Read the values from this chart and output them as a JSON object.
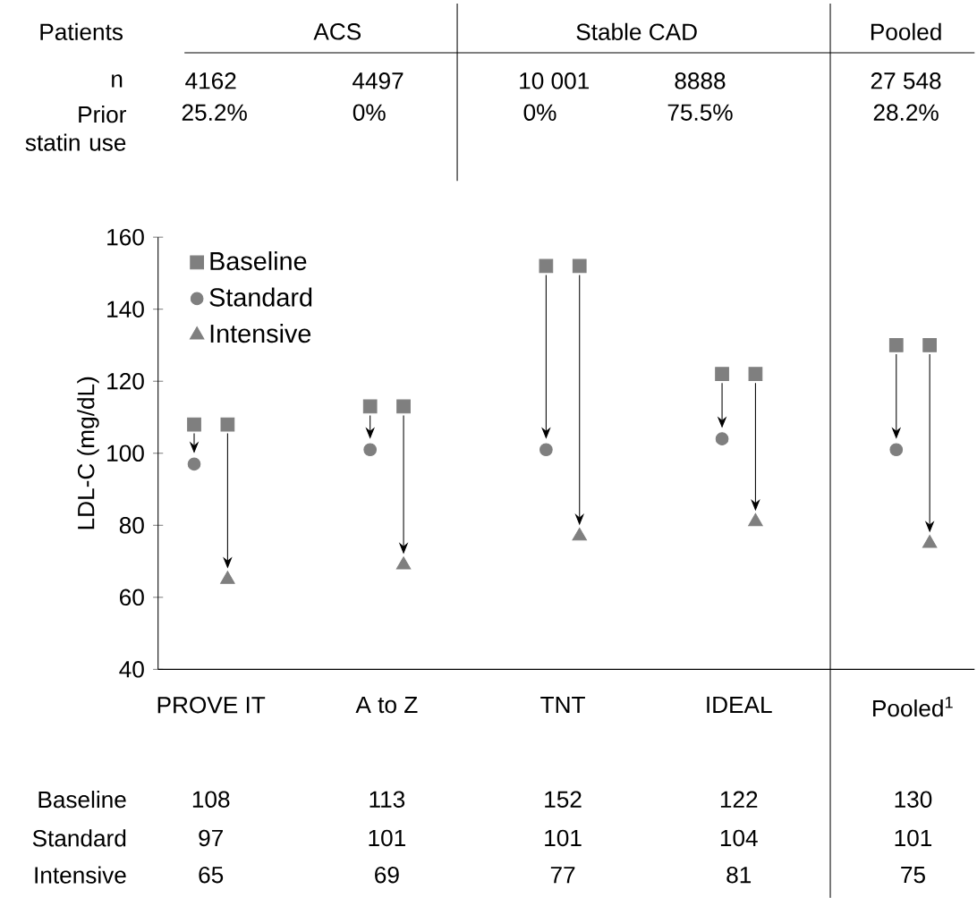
{
  "chart_data": {
    "type": "scatter",
    "ylabel": "LDL-C (mg/dL)",
    "categories": [
      "PROVE IT",
      "A to Z",
      "TNT",
      "IDEAL",
      "Pooled$^{1}$"
    ],
    "series": [
      {
        "name": "Baseline",
        "color": "#7f7f7f",
        "marker": "square",
        "values": [
          108,
          113,
          152,
          122,
          130
        ],
        "value_labels": [
          "108",
          "113",
          "152",
          "122",
          "130"
        ]
      },
      {
        "name": "Standard",
        "color": "#7f7f7f",
        "marker": "circle",
        "values": [
          97,
          101,
          101,
          104,
          101
        ],
        "value_labels": [
          "97",
          "101",
          "101",
          "104",
          "101"
        ]
      },
      {
        "name": "Intensive",
        "color": "#7f7f7f",
        "marker": "triangle",
        "values": [
          65,
          69,
          77,
          81,
          75
        ],
        "value_labels": [
          "65",
          "69",
          "77",
          "81",
          "75"
        ]
      },
      {
        "color": "#7f7f7f",
        "marker": "square",
        "values": [
          108,
          113,
          152,
          122,
          130
        ]
      }
    ],
    "ylim": [
      40,
      160
    ],
    "yticks": [
      40,
      60,
      80,
      100,
      120,
      140,
      160
    ],
    "legend": "top left",
    "annotations": [
      "Patients",
      "ACS",
      "Stable CAD",
      "Pooled",
      "n",
      "4162",
      "4497",
      "10 001",
      "8888",
      "27 548",
      "Prior statin use",
      "25.2%",
      "0%",
      "0%",
      "75.5%",
      "28.2%"
    ]
  }
}
